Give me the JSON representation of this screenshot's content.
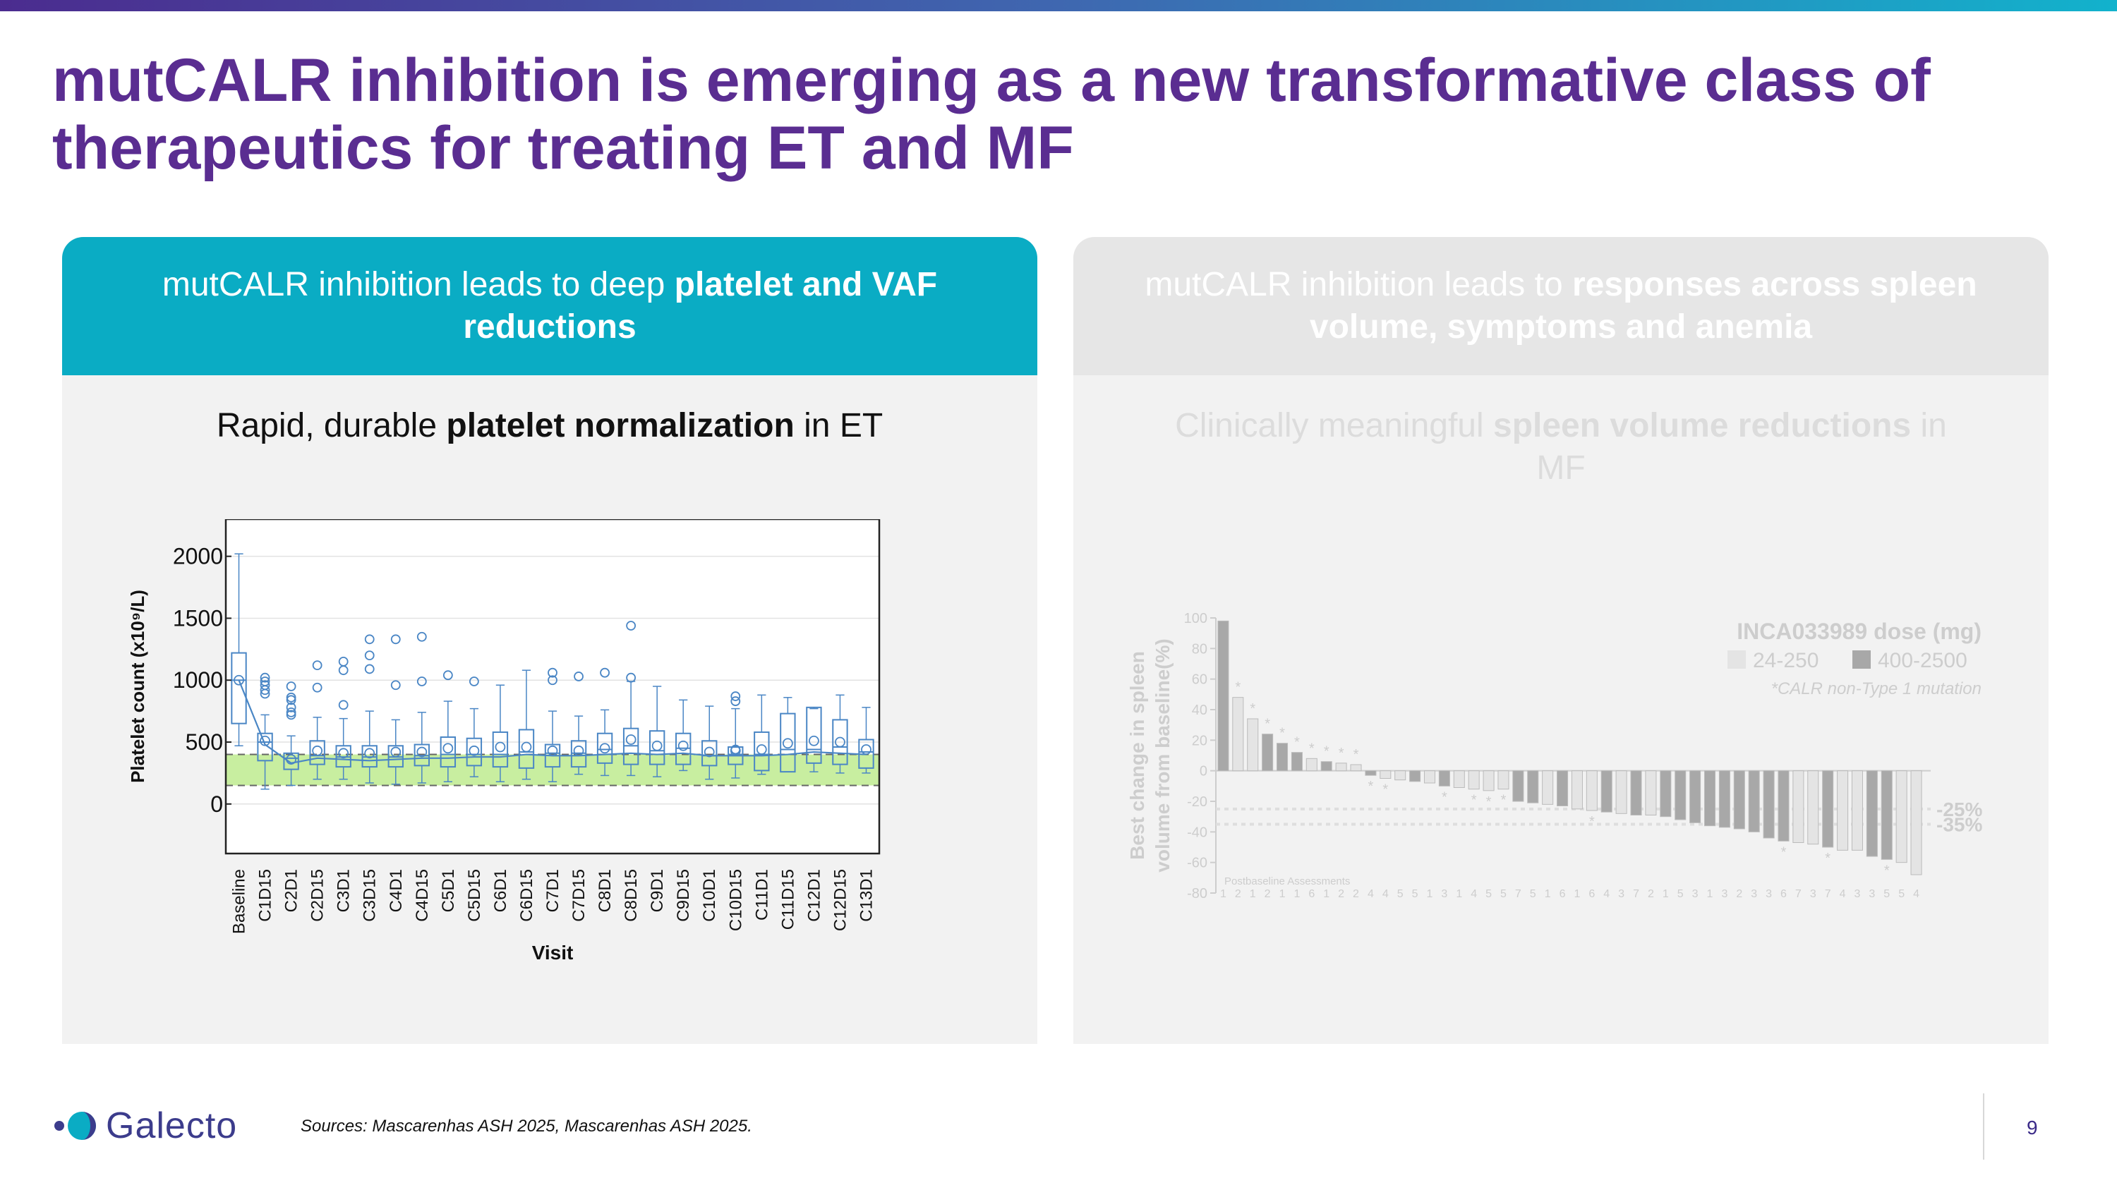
{
  "title": "mutCALR inhibition is emerging as a new transformative class of therapeutics for treating ET and MF",
  "left_panel": {
    "header_prefix": "mutCALR inhibition leads to deep ",
    "header_bold": "platelet and VAF reductions",
    "subtitle_prefix": "Rapid, durable ",
    "subtitle_bold": "platelet normalization",
    "subtitle_suffix": " in ET"
  },
  "right_panel": {
    "header_prefix": "mutCALR inhibition leads to ",
    "header_bold": "responses across spleen volume, symptoms and anemia",
    "subtitle_prefix": "Clinically meaningful ",
    "subtitle_bold": "spleen volume reductions",
    "subtitle_suffix": " in MF"
  },
  "footer": {
    "logo_text": "Galecto",
    "sources": "Sources: Mascarenhas ASH 2025, Mascarenhas ASH 2025.",
    "page_number": "9"
  },
  "colors": {
    "title": "#5a2d91",
    "header_teal": "#0aacc4",
    "box_blue": "#4a86c5",
    "normal_band": "#c8eea0",
    "light_bar": "#e4e4e4",
    "dark_bar": "#a8a8a8"
  },
  "chart_data": [
    {
      "type": "box",
      "title": "",
      "xlabel": "Visit",
      "ylabel": "Platelet count (x10⁹/L)",
      "ylim": [
        -400,
        2300
      ],
      "yticks": [
        0,
        500,
        1000,
        1500,
        2000
      ],
      "normal_range": [
        150,
        400
      ],
      "categories": [
        "Baseline",
        "C1D15",
        "C2D1",
        "C2D15",
        "C3D1",
        "C3D15",
        "C4D1",
        "C4D15",
        "C5D1",
        "C5D15",
        "C6D1",
        "C6D15",
        "C7D1",
        "C7D15",
        "C8D1",
        "C8D15",
        "C9D1",
        "C9D15",
        "C10D1",
        "C10D15",
        "C11D1",
        "C11D15",
        "C12D1",
        "C12D15",
        "C13D1"
      ],
      "series": [
        {
          "name": "Platelet count",
          "q1": [
            650,
            350,
            280,
            320,
            300,
            300,
            300,
            310,
            300,
            310,
            300,
            290,
            300,
            300,
            330,
            320,
            320,
            320,
            310,
            320,
            270,
            260,
            330,
            320,
            290
          ],
          "median": [
            1000,
            500,
            370,
            390,
            380,
            380,
            380,
            390,
            400,
            400,
            400,
            420,
            410,
            410,
            440,
            470,
            430,
            450,
            390,
            400,
            400,
            440,
            440,
            460,
            420
          ],
          "q3": [
            1220,
            570,
            410,
            510,
            470,
            470,
            470,
            480,
            540,
            530,
            580,
            600,
            480,
            510,
            570,
            610,
            590,
            570,
            510,
            460,
            580,
            730,
            780,
            680,
            520
          ],
          "wmin": [
            470,
            120,
            150,
            200,
            200,
            170,
            160,
            170,
            180,
            220,
            180,
            200,
            180,
            240,
            230,
            230,
            220,
            270,
            200,
            210,
            240,
            260,
            260,
            250,
            250
          ],
          "wmax": [
            2020,
            720,
            550,
            700,
            690,
            750,
            680,
            740,
            830,
            770,
            960,
            1080,
            750,
            710,
            760,
            990,
            950,
            840,
            790,
            770,
            880,
            860,
            770,
            880,
            780
          ],
          "mean": [
            1000,
            510,
            360,
            430,
            410,
            410,
            420,
            420,
            450,
            430,
            460,
            460,
            430,
            430,
            450,
            520,
            470,
            470,
            420,
            430,
            440,
            490,
            510,
            500,
            440
          ],
          "outliers": [
            [],
            [
              1020,
              990,
              960,
              920,
              890
            ],
            [
              950,
              860,
              840,
              780,
              740,
              720
            ],
            [
              1120,
              940
            ],
            [
              1150,
              1080,
              800
            ],
            [
              1330,
              1200,
              1090
            ],
            [
              1330,
              960
            ],
            [
              1350,
              990
            ],
            [
              1040
            ],
            [
              990
            ],
            [],
            [],
            [
              1060,
              1000
            ],
            [
              1030
            ],
            [
              1060
            ],
            [
              1440,
              1020
            ],
            [],
            [],
            [],
            [
              870,
              830,
              440
            ],
            [],
            [],
            [],
            [],
            []
          ],
          "median_line": [
            1000,
            480,
            330,
            370,
            360,
            350,
            360,
            370,
            370,
            380,
            380,
            400,
            390,
            390,
            400,
            410,
            400,
            410,
            390,
            390,
            390,
            400,
            420,
            410,
            400
          ]
        }
      ]
    },
    {
      "type": "bar",
      "title": "INCA033989 dose (mg)",
      "ylabel": "Best change in spleen volume from baseline(%)",
      "ylim": [
        -80,
        100
      ],
      "yticks": [
        -80,
        -60,
        -40,
        -20,
        0,
        20,
        40,
        60,
        80,
        100
      ],
      "reference_lines": [
        -25,
        -35
      ],
      "reference_labels": [
        "-25%",
        "-35%"
      ],
      "legend": [
        "24-250",
        "400-2500"
      ],
      "footnote": "*CALR non-Type 1 mutation",
      "x_annotation_label": "Postbaseline Assessments",
      "series": [
        {
          "name": "Best change in spleen volume",
          "values": [
            98,
            48,
            34,
            24,
            18,
            12,
            8,
            6,
            5,
            4,
            -3,
            -5,
            -6,
            -7,
            -8,
            -10,
            -11,
            -12,
            -13,
            -12,
            -20,
            -21,
            -22,
            -23,
            -25,
            -26,
            -27,
            -28,
            -29,
            -29,
            -30,
            -32,
            -34,
            -36,
            -37,
            -38,
            -40,
            -44,
            -46,
            -47,
            -48,
            -50,
            -52,
            -52,
            -56,
            -58,
            -60,
            -68
          ],
          "dose_group": [
            "H",
            "L",
            "L",
            "H",
            "H",
            "H",
            "L",
            "H",
            "L",
            "L",
            "H",
            "L",
            "L",
            "H",
            "L",
            "H",
            "L",
            "L",
            "L",
            "L",
            "H",
            "H",
            "L",
            "H",
            "L",
            "L",
            "H",
            "L",
            "H",
            "L",
            "H",
            "H",
            "H",
            "H",
            "H",
            "H",
            "H",
            "H",
            "H",
            "L",
            "L",
            "H",
            "L",
            "L",
            "H",
            "H",
            "L",
            "L"
          ],
          "assessments": [
            "1",
            "2",
            "1",
            "2",
            "1",
            "1",
            "6",
            "1",
            "2",
            "2",
            "4",
            "4",
            "5",
            "5",
            "1",
            "3",
            "1",
            "4",
            "5",
            "5",
            "7",
            "5",
            "1",
            "6",
            "1",
            "6",
            "4",
            "3",
            "7",
            "2",
            "1",
            "5",
            "3",
            "1",
            "3",
            "2",
            "3",
            "3",
            "6",
            "7",
            "3",
            "7",
            "4",
            "3",
            "3",
            "5",
            "5",
            "4"
          ],
          "non_type1": [
            false,
            true,
            true,
            true,
            true,
            true,
            true,
            true,
            true,
            true,
            true,
            true,
            false,
            false,
            false,
            true,
            false,
            true,
            true,
            true,
            false,
            false,
            false,
            false,
            false,
            true,
            false,
            false,
            false,
            false,
            false,
            false,
            false,
            false,
            false,
            false,
            false,
            false,
            true,
            false,
            false,
            true,
            false,
            false,
            false,
            true,
            false,
            false
          ]
        }
      ]
    }
  ]
}
